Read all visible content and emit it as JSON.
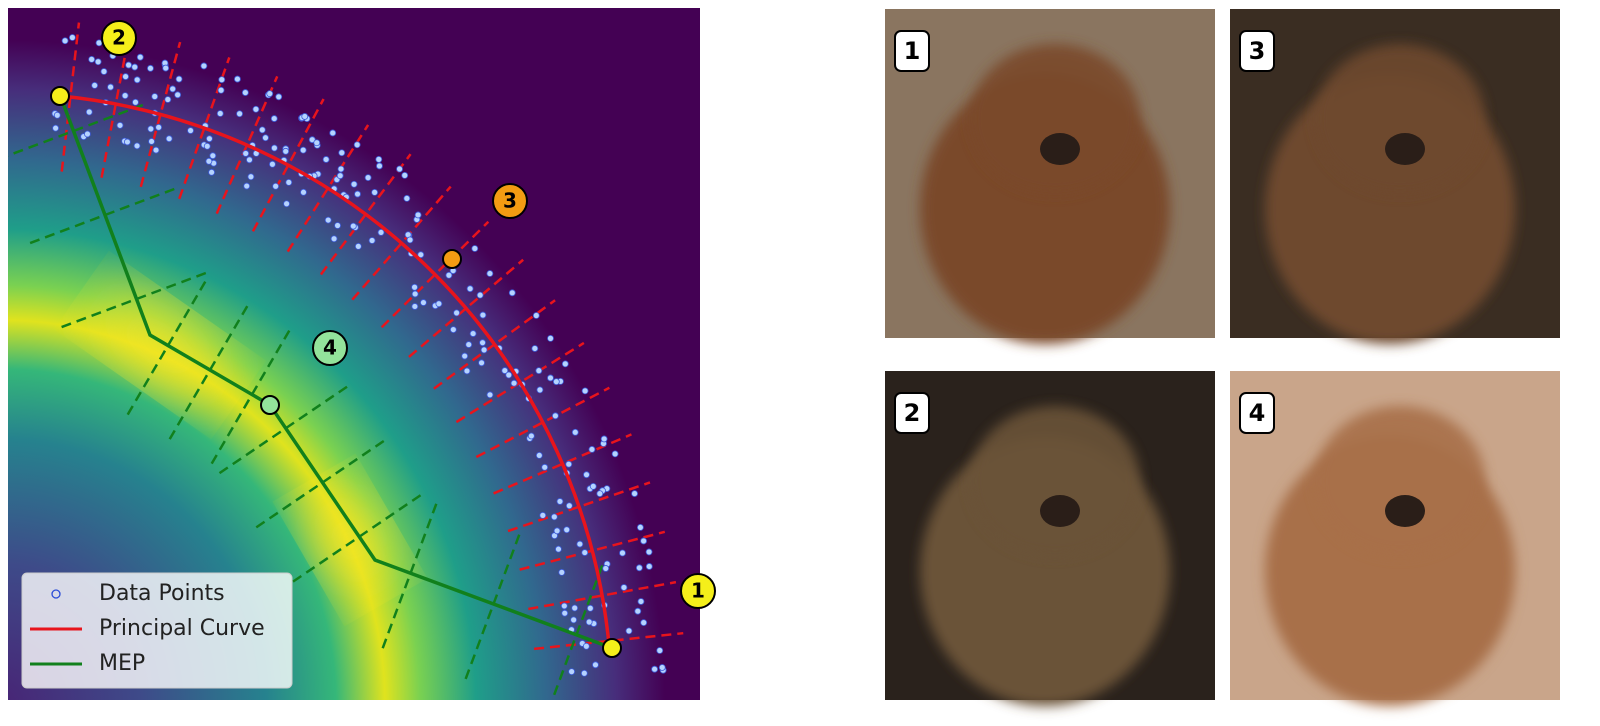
{
  "plot": {
    "legend": [
      "Data Points",
      "Principal Curve",
      "MEP"
    ],
    "badges": [
      "1",
      "2",
      "3",
      "4"
    ]
  },
  "images": [
    {
      "label": "1"
    },
    {
      "label": "3"
    },
    {
      "label": "2"
    },
    {
      "label": "4"
    }
  ]
}
